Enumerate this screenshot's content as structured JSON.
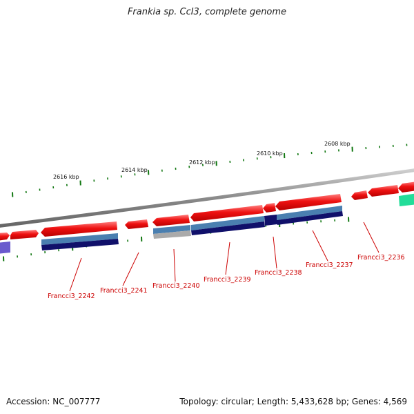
{
  "title": "Frankia sp. CcI3, complete genome",
  "footer": {
    "accession": "Accession: NC_007777",
    "topology": "Topology: circular; Length: 5,433,628 bp; Genes: 4,569"
  },
  "scale_labels": [
    "2616 kbp",
    "2614 kbp",
    "2612 kbp",
    "2610 kbp",
    "2608 kbp"
  ],
  "gene_labels": [
    "Francci3_2242",
    "Francci3_2241",
    "Francci3_2240",
    "Francci3_2239",
    "Francci3_2238",
    "Francci3_2237",
    "Francci3_2236"
  ],
  "colors": {
    "forward_gene": "#ee1111",
    "backbone": "#888888",
    "tick": "#117711",
    "label": "#cc0000",
    "feature_steel": "#4a7fb0",
    "feature_navy": "#10106a",
    "feature_gray": "#aaaaaa",
    "feature_purple": "#6a5acd",
    "feature_teal": "#22dd99"
  }
}
